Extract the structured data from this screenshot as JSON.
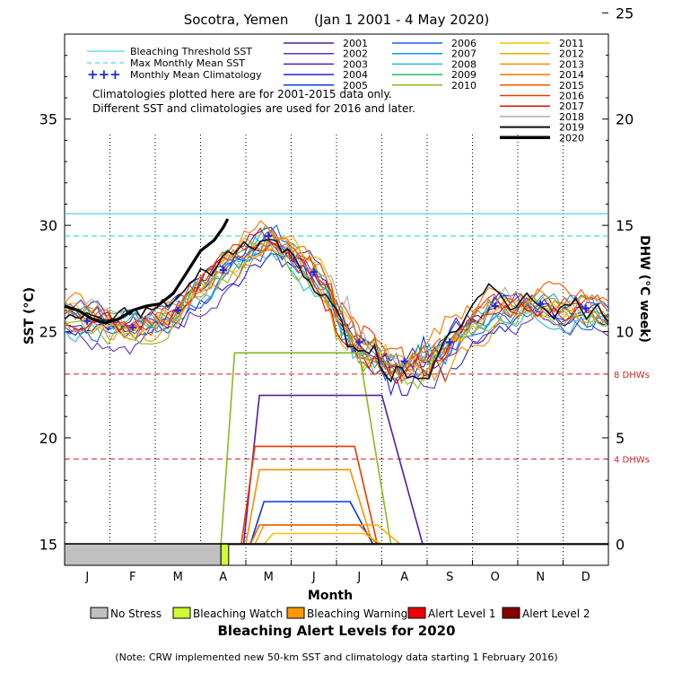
{
  "chart_data": {
    "type": "line",
    "title": "Socotra, Yemen      (Jan 1 2001 - 4 May 2020)",
    "xlabel": "Month",
    "ylabel": "SST (°C)",
    "y2label": "DHW (°C week)",
    "months": [
      "J",
      "F",
      "M",
      "A",
      "M",
      "J",
      "J",
      "A",
      "S",
      "O",
      "N",
      "D"
    ],
    "ylim": [
      14,
      39
    ],
    "y_ticks": [
      15,
      20,
      25,
      30,
      35
    ],
    "y2lim": [
      -1,
      24
    ],
    "y2_ticks": [
      0,
      5,
      10,
      15,
      20,
      25
    ],
    "bleaching_threshold_sst": 30.55,
    "max_monthly_mean_sst": 29.5,
    "dhw_thresholds": [
      {
        "value": 8,
        "label": "8 DHWs"
      },
      {
        "value": 4,
        "label": "4 DHWs"
      }
    ],
    "legend_lines": {
      "threshold": "Bleaching Threshold SST",
      "mmm": "Max Monthly Mean SST",
      "climatology": "Monthly Mean Climatology"
    },
    "note_lines": [
      "Climatologies plotted here are for 2001-2015 data only.",
      "Different SST and climatologies are used for 2016 and later."
    ],
    "climatology": {
      "month": [
        1,
        2,
        3,
        4,
        5,
        6,
        7,
        8,
        9,
        10,
        11,
        12
      ],
      "values": [
        25.5,
        25.2,
        26.0,
        27.9,
        29.5,
        27.8,
        24.5,
        23.6,
        24.5,
        26.2,
        26.3,
        26.1
      ]
    },
    "series": [
      {
        "name": "2001",
        "color": "#5a1a9c"
      },
      {
        "name": "2002",
        "color": "#6633bb"
      },
      {
        "name": "2003",
        "color": "#4422aa"
      },
      {
        "name": "2004",
        "color": "#2222cc"
      },
      {
        "name": "2005",
        "color": "#1133dd"
      },
      {
        "name": "2006",
        "color": "#1166ee"
      },
      {
        "name": "2007",
        "color": "#1199ee"
      },
      {
        "name": "2008",
        "color": "#22bbdd"
      },
      {
        "name": "2009",
        "color": "#22bb66"
      },
      {
        "name": "2010",
        "color": "#88bb22"
      },
      {
        "name": "2011",
        "color": "#f2c200"
      },
      {
        "name": "2012",
        "color": "#f5a800"
      },
      {
        "name": "2013",
        "color": "#f59000"
      },
      {
        "name": "2014",
        "color": "#f07800"
      },
      {
        "name": "2015",
        "color": "#ee5a00"
      },
      {
        "name": "2016",
        "color": "#e83800"
      },
      {
        "name": "2017",
        "color": "#dd1100"
      },
      {
        "name": "2018",
        "color": "#aaaaaa"
      },
      {
        "name": "2019",
        "color": "#111111"
      },
      {
        "name": "2020",
        "color": "#000000"
      }
    ],
    "sst_2020": {
      "month": [
        0.0,
        0.3,
        0.6,
        0.9,
        1.2,
        1.5,
        1.8,
        2.1,
        2.4,
        2.7,
        3.0,
        3.3,
        3.5,
        3.6
      ],
      "sst": [
        26.2,
        26.0,
        25.6,
        25.4,
        25.6,
        26.0,
        26.2,
        26.3,
        26.8,
        27.8,
        28.8,
        29.3,
        29.9,
        30.3
      ]
    },
    "dhw_2020": {
      "month": [
        0,
        3.45,
        3.6,
        12
      ],
      "dhw": [
        0,
        0,
        0,
        0
      ]
    },
    "alert_bar_2020": {
      "segments": [
        {
          "from_month": 0.0,
          "to_month": 3.45,
          "level": "No Stress"
        },
        {
          "from_month": 3.45,
          "to_month": 3.62,
          "level": "Bleaching Watch"
        }
      ]
    },
    "alert_levels": [
      {
        "name": "No Stress",
        "color": "#c0c0c0"
      },
      {
        "name": "Bleaching Watch",
        "color": "#ccff33"
      },
      {
        "name": "Bleaching Warning",
        "color": "#ff9900"
      },
      {
        "name": "Alert Level 1",
        "color": "#ee0000"
      },
      {
        "name": "Alert Level 2",
        "color": "#880000"
      }
    ],
    "alert_levels_title": "Bleaching Alert Levels for 2020",
    "footnote": "(Note: CRW implemented new 50-km SST and climatology data starting 1 February 2016)",
    "past_dhw_curves": [
      {
        "color": "#88bb22",
        "start": 3.45,
        "rise": 3.75,
        "end_flat": 6.5,
        "end": 7.2,
        "peak": 9
      },
      {
        "color": "#5a1a9c",
        "start": 3.95,
        "rise": 4.3,
        "end_flat": 7.0,
        "end": 7.9,
        "peak": 7
      },
      {
        "color": "#e83800",
        "start": 3.9,
        "rise": 4.2,
        "end_flat": 6.4,
        "end": 6.9,
        "peak": 4.6
      },
      {
        "color": "#f59000",
        "start": 4.0,
        "rise": 4.3,
        "end_flat": 6.3,
        "end": 6.8,
        "peak": 3.5
      },
      {
        "color": "#1133dd",
        "start": 4.1,
        "rise": 4.4,
        "end_flat": 6.3,
        "end": 6.8,
        "peak": 2
      },
      {
        "color": "#f5a800",
        "start": 4.2,
        "rise": 4.4,
        "end_flat": 6.9,
        "end": 7.4,
        "peak": 0.9
      },
      {
        "color": "#ee5a00",
        "start": 4.1,
        "rise": 4.3,
        "end_flat": 6.5,
        "end": 6.9,
        "peak": 0.9
      },
      {
        "color": "#f2c200",
        "start": 4.4,
        "rise": 4.6,
        "end_flat": 6.6,
        "end": 7.0,
        "peak": 0.5
      }
    ]
  }
}
